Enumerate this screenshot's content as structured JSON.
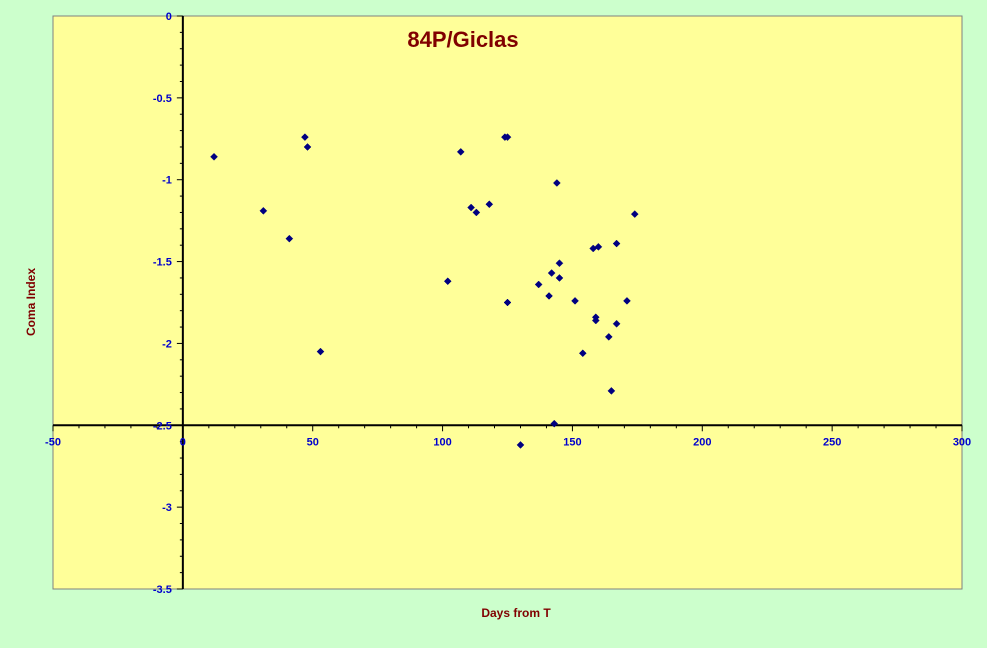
{
  "chart_data": {
    "type": "scatter",
    "title": "84P/Giclas",
    "xlabel": "Days from T",
    "ylabel": "Coma Index",
    "xlim": [
      -50,
      300
    ],
    "ylim": [
      -3.5,
      0
    ],
    "x_ticks": [
      -50,
      0,
      50,
      100,
      150,
      200,
      250,
      300
    ],
    "y_ticks": [
      0,
      -0.5,
      -1,
      -1.5,
      -2,
      -2.5,
      -3,
      -3.5
    ],
    "x_tick_labels": [
      "-50",
      "0",
      "50",
      "100",
      "150",
      "200",
      "250",
      "300"
    ],
    "y_tick_labels": [
      "0",
      "-0.5",
      "-1",
      "-1.5",
      "-2",
      "-2.5",
      "-3",
      "-3.5"
    ],
    "grid": false,
    "colors": {
      "background": "#ccffcc",
      "plot_area": "#ffff99",
      "marker": "#000080",
      "axis_text": "#0000cc",
      "title": "#800000"
    },
    "series": [
      {
        "points": [
          [
            12,
            -0.86
          ],
          [
            31,
            -1.19
          ],
          [
            41,
            -1.36
          ],
          [
            47,
            -0.74
          ],
          [
            48,
            -0.8
          ],
          [
            53,
            -2.05
          ],
          [
            102,
            -1.62
          ],
          [
            107,
            -0.83
          ],
          [
            111,
            -1.17
          ],
          [
            113,
            -1.2
          ],
          [
            118,
            -1.15
          ],
          [
            124,
            -0.74
          ],
          [
            125,
            -0.74
          ],
          [
            125,
            -1.75
          ],
          [
            130,
            -2.62
          ],
          [
            137,
            -1.64
          ],
          [
            141,
            -1.71
          ],
          [
            142,
            -1.57
          ],
          [
            143,
            -2.49
          ],
          [
            144,
            -1.02
          ],
          [
            145,
            -1.51
          ],
          [
            145,
            -1.6
          ],
          [
            151,
            -1.74
          ],
          [
            154,
            -2.06
          ],
          [
            158,
            -1.42
          ],
          [
            159,
            -1.84
          ],
          [
            159,
            -1.86
          ],
          [
            160,
            -1.41
          ],
          [
            164,
            -1.96
          ],
          [
            165,
            -2.29
          ],
          [
            167,
            -1.88
          ],
          [
            167,
            -1.39
          ],
          [
            171,
            -1.74
          ],
          [
            174,
            -1.21
          ]
        ]
      }
    ]
  }
}
